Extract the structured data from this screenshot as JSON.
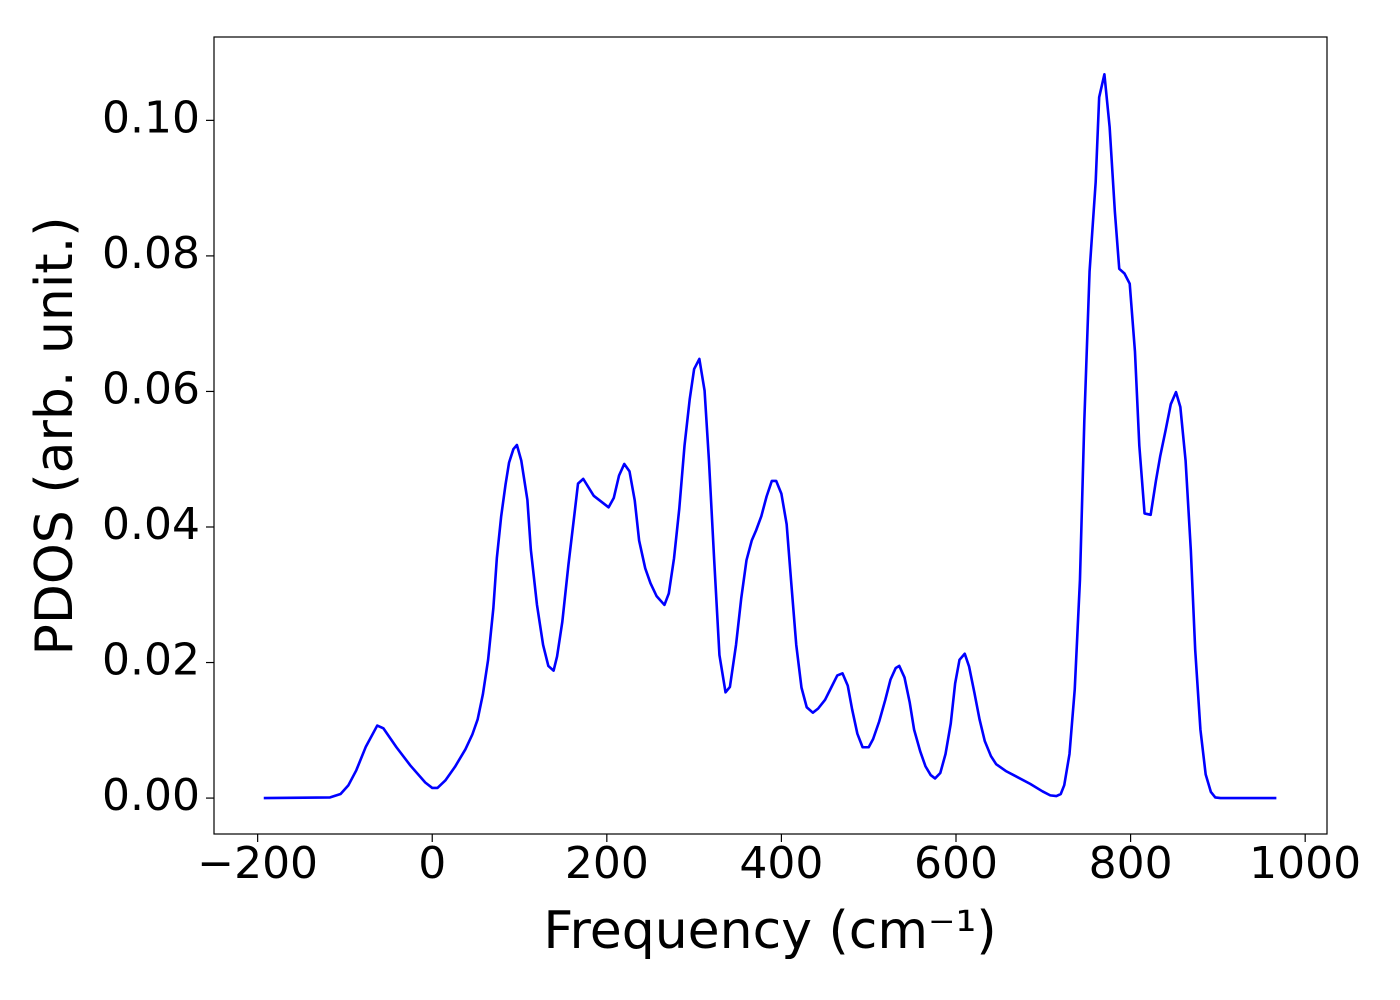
{
  "chart_data": {
    "type": "line",
    "xlabel": "Frequency (cm⁻¹)",
    "ylabel": "PDOS (arb. unit.)",
    "x": [
      -193,
      -117,
      -105,
      -96,
      -87,
      -76,
      -63,
      -56,
      -41,
      -25,
      -8,
      0,
      6,
      15,
      26,
      38,
      46,
      52,
      58,
      64,
      70,
      74,
      79,
      84,
      88,
      93,
      97,
      102,
      109,
      113,
      120,
      127,
      133,
      139,
      143,
      149,
      156,
      163,
      167,
      173,
      185,
      202,
      208,
      214,
      220,
      226,
      232,
      237,
      244,
      250,
      257,
      266,
      271,
      277,
      283,
      289,
      295,
      300,
      306,
      312,
      317,
      323,
      329,
      336,
      341,
      348,
      354,
      360,
      366,
      371,
      377,
      383,
      389,
      394,
      400,
      406,
      411,
      417,
      423,
      429,
      436,
      442,
      450,
      457,
      464,
      470,
      476,
      481,
      487,
      493,
      500,
      505,
      512,
      519,
      525,
      531,
      535,
      541,
      547,
      552,
      559,
      565,
      571,
      576,
      582,
      588,
      594,
      599,
      604,
      610,
      615,
      621,
      627,
      633,
      640,
      646,
      657,
      685,
      699,
      708,
      715,
      720,
      724,
      730,
      736,
      742,
      747,
      753,
      760,
      764,
      770,
      776,
      782,
      787,
      793,
      799,
      805,
      810,
      816,
      823,
      829,
      834,
      840,
      846,
      852,
      857,
      863,
      869,
      874,
      880,
      886,
      892,
      897,
      903,
      967
    ],
    "series": [
      {
        "color": "#0000ff",
        "values": [
          0,
          0.0001,
          0.0006,
          0.0019,
          0.0041,
          0.0076,
          0.0107,
          0.0103,
          0.0075,
          0.0048,
          0.0023,
          0.0015,
          0.0015,
          0.0026,
          0.0046,
          0.0072,
          0.0094,
          0.0116,
          0.0153,
          0.0204,
          0.028,
          0.0354,
          0.0416,
          0.0463,
          0.0495,
          0.0515,
          0.0521,
          0.0498,
          0.044,
          0.0366,
          0.0285,
          0.0226,
          0.0195,
          0.0188,
          0.0209,
          0.026,
          0.0344,
          0.042,
          0.0464,
          0.0471,
          0.0446,
          0.0429,
          0.0443,
          0.0476,
          0.0493,
          0.0482,
          0.0439,
          0.038,
          0.0339,
          0.0317,
          0.0298,
          0.0285,
          0.0302,
          0.0354,
          0.0427,
          0.052,
          0.0589,
          0.0633,
          0.0648,
          0.0601,
          0.0498,
          0.0351,
          0.0211,
          0.0156,
          0.0164,
          0.0226,
          0.0295,
          0.0351,
          0.038,
          0.0395,
          0.0416,
          0.0445,
          0.0468,
          0.0468,
          0.0449,
          0.0404,
          0.0322,
          0.0226,
          0.0163,
          0.0134,
          0.0126,
          0.0132,
          0.0145,
          0.0163,
          0.0181,
          0.0184,
          0.0166,
          0.0131,
          0.0095,
          0.0075,
          0.0075,
          0.0087,
          0.0113,
          0.0145,
          0.0175,
          0.0192,
          0.0195,
          0.0178,
          0.0141,
          0.0101,
          0.0069,
          0.0047,
          0.0034,
          0.0029,
          0.0037,
          0.0065,
          0.011,
          0.0169,
          0.0204,
          0.0213,
          0.0194,
          0.0156,
          0.0116,
          0.0084,
          0.0062,
          0.005,
          0.004,
          0.0021,
          0.001,
          0.0004,
          0.0003,
          0.0006,
          0.0019,
          0.0065,
          0.016,
          0.0322,
          0.0557,
          0.0777,
          0.0909,
          0.1034,
          0.1068,
          0.099,
          0.0865,
          0.0781,
          0.0774,
          0.0759,
          0.0659,
          0.052,
          0.042,
          0.0418,
          0.0468,
          0.0505,
          0.0542,
          0.0581,
          0.0599,
          0.0577,
          0.0498,
          0.0366,
          0.0219,
          0.0101,
          0.0035,
          0.0009,
          0.0001,
          0,
          0
        ]
      }
    ],
    "xlim": [
      -250,
      1025
    ],
    "xticks": [
      {
        "value": -200,
        "label": "−200"
      },
      0,
      200,
      400,
      600,
      800,
      1000
    ],
    "ylim": [
      -0.0053,
      0.1123
    ],
    "yticks": [
      {
        "value": 0,
        "label": "0.00"
      },
      {
        "value": 0.02,
        "label": "0.02"
      },
      {
        "value": 0.04,
        "label": "0.04"
      },
      {
        "value": 0.06,
        "label": "0.06"
      },
      {
        "value": 0.08,
        "label": "0.08"
      },
      {
        "value": 0.1,
        "label": "0.10"
      }
    ]
  }
}
